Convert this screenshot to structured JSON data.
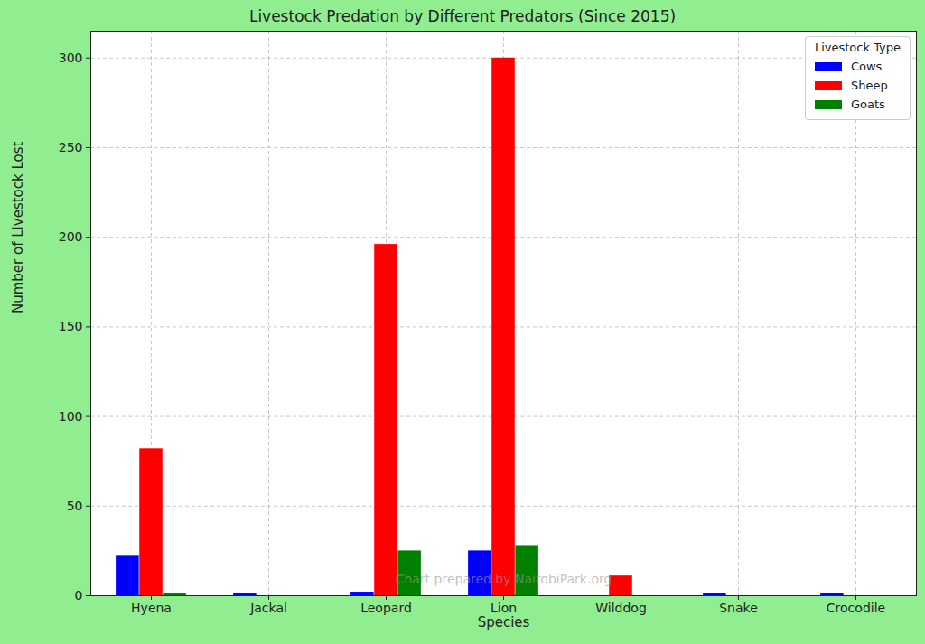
{
  "chart_data": {
    "type": "bar",
    "title": "Livestock Predation by Different Predators (Since 2015)",
    "x_label": "Species",
    "y_label": "Number of Livestock Lost",
    "categories": [
      "Hyena",
      "Jackal",
      "Leopard",
      "Lion",
      "Wilddog",
      "Snake",
      "Crocodile"
    ],
    "series": [
      {
        "name": "Cows",
        "color": "#0000ff",
        "values": [
          22,
          1,
          2,
          25,
          0,
          1,
          1
        ]
      },
      {
        "name": "Sheep",
        "color": "#ff0000",
        "values": [
          82,
          0,
          196,
          300,
          11,
          0,
          0
        ]
      },
      {
        "name": "Goats",
        "color": "#008000",
        "values": [
          1,
          0,
          25,
          28,
          0,
          0,
          0
        ]
      }
    ],
    "ylim": [
      0,
      315
    ],
    "yticks": [
      0,
      50,
      100,
      150,
      200,
      250,
      300
    ],
    "grid": true,
    "legend": "upper right",
    "legend_title": "Livestock Type",
    "annotations": [
      "Chart prepared by NairobiPark.org"
    ]
  }
}
